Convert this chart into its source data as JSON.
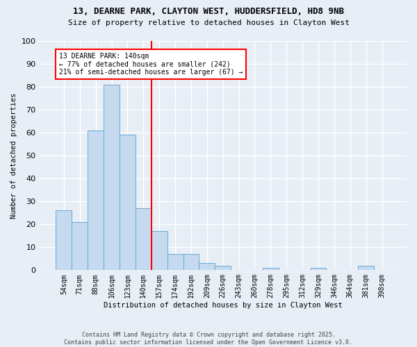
{
  "title1": "13, DEARNE PARK, CLAYTON WEST, HUDDERSFIELD, HD8 9NB",
  "title2": "Size of property relative to detached houses in Clayton West",
  "xlabel": "Distribution of detached houses by size in Clayton West",
  "ylabel": "Number of detached properties",
  "bar_labels": [
    "54sqm",
    "71sqm",
    "88sqm",
    "106sqm",
    "123sqm",
    "140sqm",
    "157sqm",
    "174sqm",
    "192sqm",
    "209sqm",
    "226sqm",
    "243sqm",
    "260sqm",
    "278sqm",
    "295sqm",
    "312sqm",
    "329sqm",
    "346sqm",
    "364sqm",
    "381sqm",
    "398sqm"
  ],
  "bar_values": [
    26,
    21,
    61,
    81,
    59,
    27,
    17,
    7,
    7,
    3,
    2,
    0,
    0,
    1,
    0,
    0,
    1,
    0,
    0,
    2,
    0
  ],
  "bar_color": "#c5d9ef",
  "bar_edge_color": "#6aaad4",
  "vline_color": "red",
  "vline_index": 5,
  "annotation_text": "13 DEARNE PARK: 140sqm\n← 77% of detached houses are smaller (242)\n21% of semi-detached houses are larger (67) →",
  "annotation_box_color": "white",
  "annotation_box_edgecolor": "red",
  "footnote": "Contains HM Land Registry data © Crown copyright and database right 2025.\nContains public sector information licensed under the Open Government Licence v3.0.",
  "bg_color": "#e8eef6",
  "plot_bg_color": "#e8eef6",
  "ylim": [
    0,
    100
  ],
  "yticks": [
    0,
    10,
    20,
    30,
    40,
    50,
    60,
    70,
    80,
    90,
    100
  ],
  "grid_color": "#ffffff"
}
